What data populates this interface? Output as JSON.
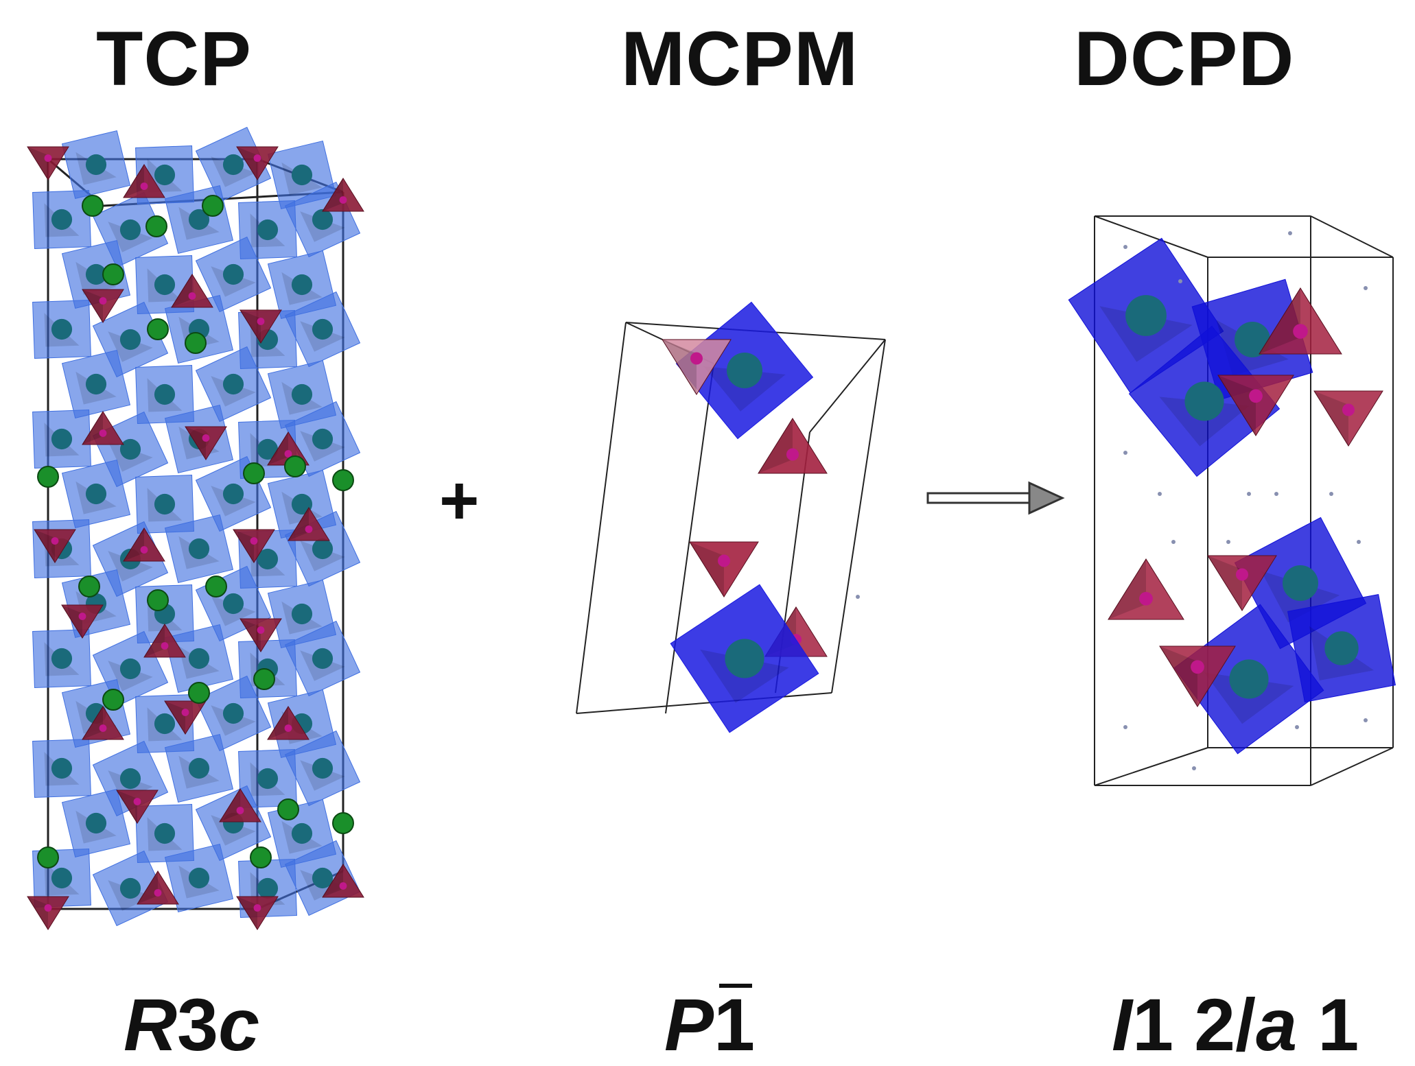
{
  "structures": [
    {
      "name": "TCP",
      "space_group": {
        "main": "R",
        "digit": "3",
        "suffix": "c"
      },
      "colors": {
        "polyhedra": "#3f6fe0",
        "tetrahedra": "#8b1a35",
        "atoms": "#1a8f2a"
      }
    },
    {
      "name": "MCPM",
      "space_group": {
        "main": "P",
        "digit": "1"
      },
      "colors": {
        "polyhedra": "#1a1ae0",
        "tetrahedra": "#a3203f"
      }
    },
    {
      "name": "DCPD",
      "space_group": {
        "p1": "I",
        "p2": "1 2/",
        "p3": "a",
        "p4": " 1"
      },
      "colors": {
        "polyhedra": "#1010d8",
        "tetrahedra": "#a3203f"
      }
    }
  ],
  "operators": {
    "plus": "+",
    "arrow_icon": "right-arrow-icon"
  }
}
